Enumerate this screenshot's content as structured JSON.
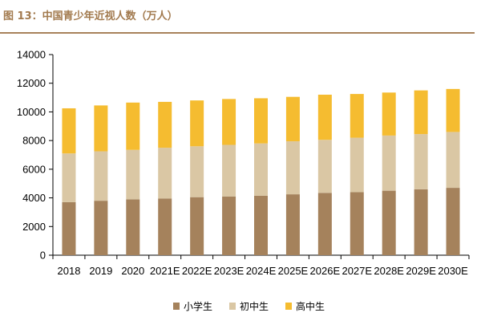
{
  "title": "图 13：中国青少年近视人数（万人）",
  "colors": {
    "accent": "#a8825b",
    "series": [
      "#a5825c",
      "#dac7a4",
      "#f5bc30"
    ]
  },
  "chart_data": {
    "type": "bar",
    "stacked": true,
    "title": "图 13：中国青少年近视人数（万人）",
    "xlabel": "",
    "ylabel": "",
    "ylim": [
      0,
      14000
    ],
    "yticks": [
      0,
      2000,
      4000,
      6000,
      8000,
      10000,
      12000,
      14000
    ],
    "grid": false,
    "legend": "bottom",
    "categories": [
      "2018",
      "2019",
      "2020",
      "2021E",
      "2022E",
      "2023E",
      "2024E",
      "2025E",
      "2026E",
      "2027E",
      "2028E",
      "2029E",
      "2030E"
    ],
    "series": [
      {
        "name": "小学生",
        "color": "#a5825c",
        "values": [
          3700,
          3800,
          3900,
          3950,
          4050,
          4100,
          4150,
          4250,
          4350,
          4400,
          4500,
          4600,
          4700
        ]
      },
      {
        "name": "初中生",
        "color": "#dac7a4",
        "values": [
          3400,
          3450,
          3450,
          3550,
          3550,
          3600,
          3650,
          3700,
          3700,
          3800,
          3850,
          3850,
          3900
        ]
      },
      {
        "name": "高中生",
        "color": "#f5bc30",
        "values": [
          3150,
          3200,
          3300,
          3200,
          3200,
          3200,
          3150,
          3100,
          3150,
          3050,
          3000,
          3050,
          3000
        ]
      }
    ]
  }
}
